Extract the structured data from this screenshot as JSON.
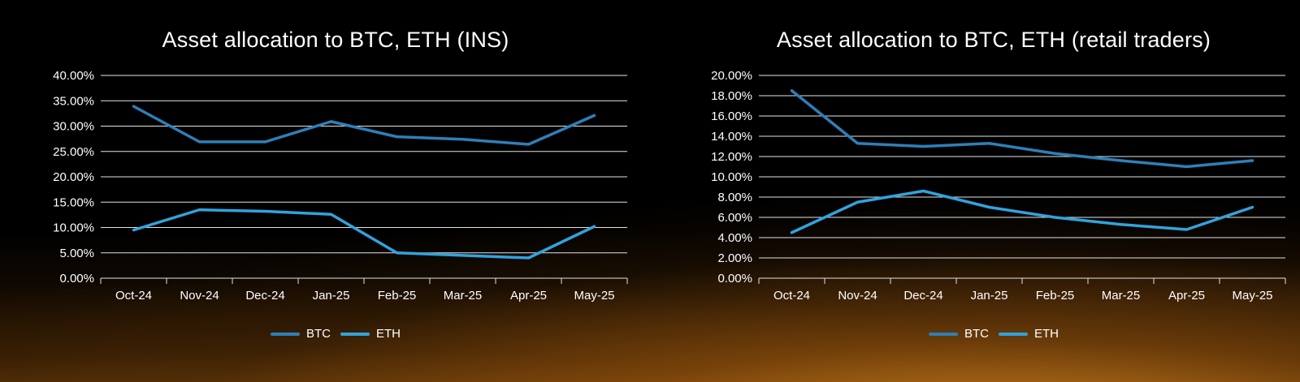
{
  "page": {
    "background_top_color": "#000000",
    "glow_color": "#e08a1e"
  },
  "chart_data": [
    {
      "type": "line",
      "title": "Asset allocation to BTC, ETH (INS)",
      "categories": [
        "Oct-24",
        "Nov-24",
        "Dec-24",
        "Jan-25",
        "Feb-25",
        "Mar-25",
        "Apr-25",
        "May-25"
      ],
      "series": [
        {
          "name": "BTC",
          "color": "#2e7fb9",
          "values": [
            33.9,
            26.9,
            26.9,
            30.9,
            27.9,
            27.4,
            26.4,
            32.1
          ]
        },
        {
          "name": "ETH",
          "color": "#31a3dd",
          "values": [
            9.5,
            13.5,
            13.2,
            12.6,
            5.0,
            4.5,
            4.0,
            10.2
          ]
        }
      ],
      "ylim": [
        0,
        40
      ],
      "ytick_step": 5,
      "ytick_format": "0.00%",
      "grid": true,
      "legend_position": "bottom",
      "legend_labels": [
        "BTC",
        "ETH"
      ]
    },
    {
      "type": "line",
      "title": "Asset allocation to BTC, ETH (retail traders)",
      "categories": [
        "Oct-24",
        "Nov-24",
        "Dec-24",
        "Jan-25",
        "Feb-25",
        "Mar-25",
        "Apr-25",
        "May-25"
      ],
      "series": [
        {
          "name": "BTC",
          "color": "#2e7fb9",
          "values": [
            18.5,
            13.3,
            13.0,
            13.3,
            12.3,
            11.6,
            11.0,
            11.6
          ]
        },
        {
          "name": "ETH",
          "color": "#31a3dd",
          "values": [
            4.5,
            7.5,
            8.6,
            7.0,
            6.0,
            5.3,
            4.8,
            7.0
          ]
        }
      ],
      "ylim": [
        0,
        20
      ],
      "ytick_step": 2,
      "ytick_format": "0.00%",
      "grid": true,
      "legend_position": "bottom",
      "legend_labels": [
        "BTC",
        "ETH"
      ]
    }
  ]
}
